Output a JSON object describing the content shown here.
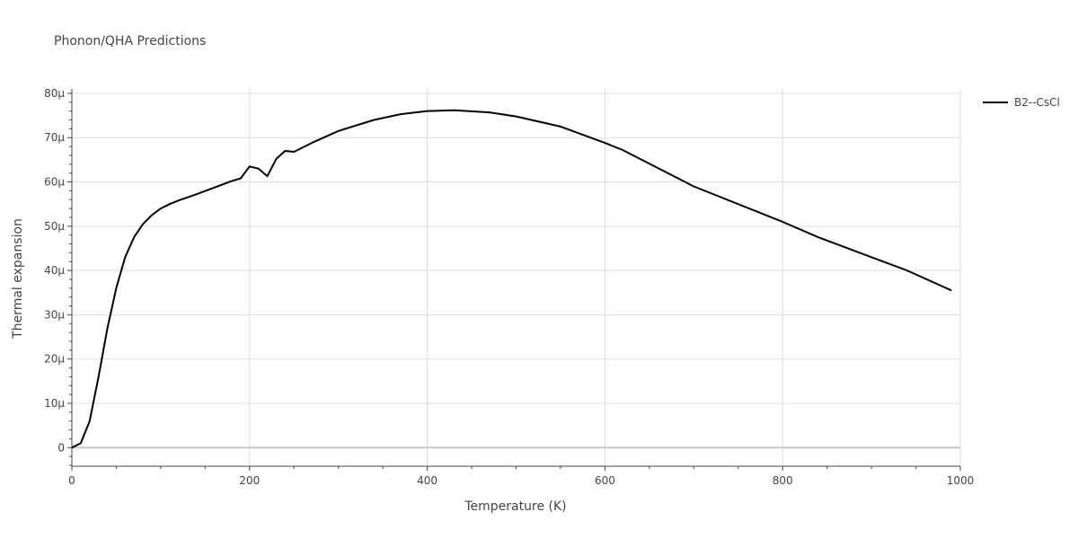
{
  "chart_data": {
    "type": "line",
    "title": "Phonon/QHA Predictions",
    "xlabel": "Temperature (K)",
    "ylabel": "Thermal expansion",
    "xlim": [
      0,
      1000
    ],
    "ylim": [
      -4.2e-06,
      8.1e-05
    ],
    "x_ticks": [
      {
        "value": 0,
        "label": "0"
      },
      {
        "value": 200,
        "label": "200"
      },
      {
        "value": 400,
        "label": "400"
      },
      {
        "value": 600,
        "label": "600"
      },
      {
        "value": 800,
        "label": "800"
      },
      {
        "value": 1000,
        "label": "1000"
      }
    ],
    "y_ticks": [
      {
        "value": 0,
        "label": "0"
      },
      {
        "value": 1e-05,
        "label": "10μ"
      },
      {
        "value": 2e-05,
        "label": "20μ"
      },
      {
        "value": 3e-05,
        "label": "30μ"
      },
      {
        "value": 4e-05,
        "label": "40μ"
      },
      {
        "value": 5e-05,
        "label": "50μ"
      },
      {
        "value": 6e-05,
        "label": "60μ"
      },
      {
        "value": 7e-05,
        "label": "70μ"
      },
      {
        "value": 8e-05,
        "label": "80μ"
      }
    ],
    "grid": true,
    "legend_position": "top-right",
    "series": [
      {
        "name": "B2--CsCl",
        "color": "#000000",
        "x": [
          0,
          10,
          20,
          30,
          40,
          50,
          60,
          70,
          80,
          90,
          100,
          110,
          120,
          140,
          160,
          180,
          190,
          200,
          210,
          220,
          230,
          240,
          250,
          270,
          300,
          340,
          370,
          400,
          430,
          470,
          500,
          550,
          600,
          620,
          700,
          800,
          840,
          900,
          940,
          990
        ],
        "y": [
          0,
          1e-06,
          6e-06,
          1.6e-05,
          2.7e-05,
          3.6e-05,
          4.3e-05,
          4.75e-05,
          5.05e-05,
          5.25e-05,
          5.4e-05,
          5.5e-05,
          5.58e-05,
          5.72e-05,
          5.87e-05,
          6.02e-05,
          6.08e-05,
          6.35e-05,
          6.3e-05,
          6.13e-05,
          6.52e-05,
          6.7e-05,
          6.68e-05,
          6.88e-05,
          7.15e-05,
          7.4e-05,
          7.53e-05,
          7.6e-05,
          7.62e-05,
          7.57e-05,
          7.48e-05,
          7.25e-05,
          6.88e-05,
          6.72e-05,
          5.9e-05,
          5.1e-05,
          4.75e-05,
          4.3e-05,
          4e-05,
          3.55e-05
        ]
      }
    ]
  }
}
